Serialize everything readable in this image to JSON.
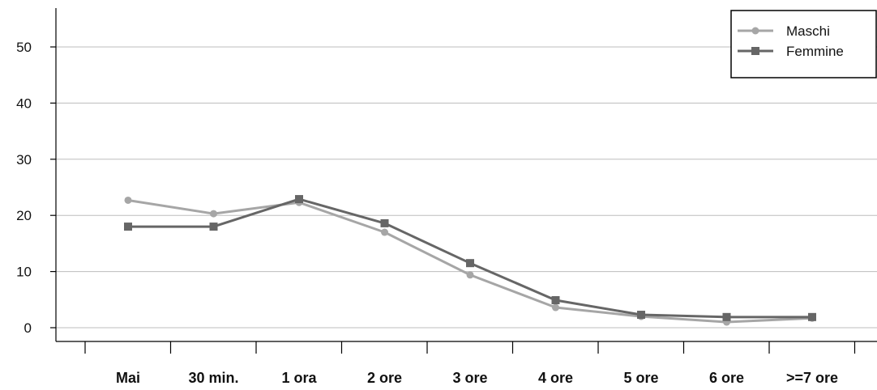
{
  "chart_data": {
    "type": "line",
    "title": "",
    "xlabel": "",
    "ylabel": "",
    "categories": [
      "Mai",
      "30 min.",
      "1 ora",
      "2 ore",
      "3 ore",
      "4 ore",
      "5 ore",
      "6 ore",
      ">=7 ore"
    ],
    "ylim": [
      0,
      55
    ],
    "yticks": [
      "0",
      "10",
      "20",
      "30",
      "40",
      "50"
    ],
    "grid": "horizontal",
    "legend_position": "top-right",
    "series": [
      {
        "name": "Maschi",
        "color": "#a6a6a6",
        "marker": "circle",
        "values": [
          22.7,
          20.3,
          22.3,
          17.0,
          9.4,
          3.6,
          2.0,
          1.0,
          1.7
        ]
      },
      {
        "name": "Femmine",
        "color": "#666666",
        "marker": "square",
        "values": [
          18.0,
          18.0,
          22.9,
          18.6,
          11.5,
          4.9,
          2.3,
          1.9,
          1.9
        ]
      }
    ]
  }
}
